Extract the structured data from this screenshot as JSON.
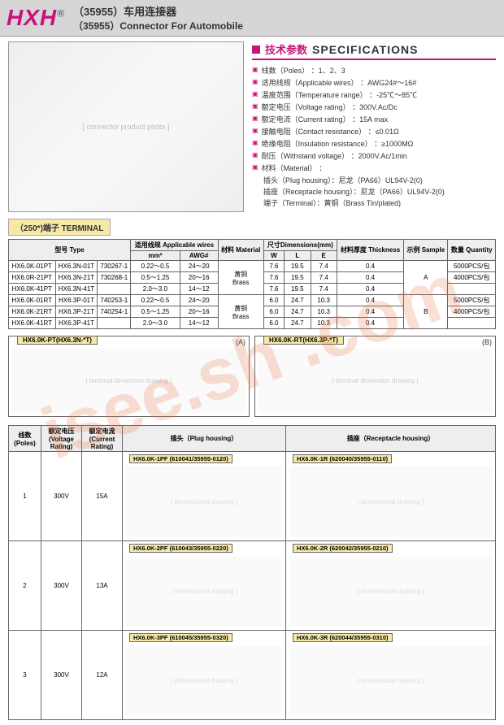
{
  "header": {
    "logo": "HXH",
    "logo_sup": "®",
    "title_cn": "（35955）车用连接器",
    "title_en": "（35955）Connector For Automobile"
  },
  "watermark": "isee.sh    .com",
  "photo_placeholder": "[ connector product photo ]",
  "specs_title": {
    "cn": "技术参数",
    "en": "SPECIFICATIONS"
  },
  "specs": [
    {
      "cn": "线数（Poles）",
      "val": "：1、2、3"
    },
    {
      "cn": "适用线规（Applicable wires）",
      "val": "：AWG24#～16#"
    },
    {
      "cn": "温度范围（Temperature range）",
      "val": "：-25℃～85℃"
    },
    {
      "cn": "额定电压（Voltage rating）",
      "val": "：300V.Ac/Dc"
    },
    {
      "cn": "额定电流（Current rating）",
      "val": "：15A max"
    },
    {
      "cn": "接触电阻（Contact resistance）",
      "val": "：≤0.01Ω"
    },
    {
      "cn": "绝缘电阻（Insulation resistance）",
      "val": "：≥1000MΩ"
    },
    {
      "cn": "耐压（Withstand voltage）",
      "val": "：2000V.Ac/1min"
    },
    {
      "cn": "材料（Material）",
      "val": "："
    }
  ],
  "materials": [
    "插头（Plug housing）：尼龙（PA66）UL94V-2(0)",
    "插座（Receptacle housing）：尼龙（PA66）UL94V-2(0)",
    "端子（Terminal）：黄铜（Brass Tin/plated)"
  ],
  "terminal_badge": "（250*)端子 TERMINAL",
  "term_table": {
    "headers": {
      "type": "型号\nType",
      "aw": "适用线规\nApplicable wires",
      "aw_mm": "mm²",
      "aw_awg": "AWG#",
      "material": "材料\nMaterial",
      "dim": "尺寸Dimensions(mm)",
      "w": "W",
      "l": "L",
      "e": "E",
      "thick": "材料厚度\nThickness",
      "sample": "示例\nSample",
      "qty": "数量\nQuantity"
    },
    "rows": [
      {
        "t1": "HX6.0K-01PT",
        "t2": "HX6.3N-01T",
        "t3": "730267-1",
        "mm": "0.22～0.5",
        "awg": "24～20",
        "mat": "黄铜\nBrass",
        "w": "7.6",
        "l": "19.5",
        "e": "7.4",
        "th": "0.4",
        "s": "A",
        "q": "5000PCS/包"
      },
      {
        "t1": "HX6.0R-21PT",
        "t2": "HX6.3N-21T",
        "t3": "730268-1",
        "mm": "0.5～1.25",
        "awg": "20～16",
        "mat": "",
        "w": "7.6",
        "l": "19.5",
        "e": "7.4",
        "th": "0.4",
        "s": "",
        "q": "4000PCS/包"
      },
      {
        "t1": "HX6.0K-41PT",
        "t2": "HX6.3N-41T",
        "t3": "",
        "mm": "2.0～3.0",
        "awg": "14～12",
        "mat": "",
        "w": "7.6",
        "l": "19.5",
        "e": "7.4",
        "th": "0.4",
        "s": "",
        "q": ""
      },
      {
        "t1": "HX6.0K-01RT",
        "t2": "HX6.3P-01T",
        "t3": "740253-1",
        "mm": "0.22～0.5",
        "awg": "24～20",
        "mat": "黄铜\nBrass",
        "w": "6.0",
        "l": "24.7",
        "e": "10.3",
        "th": "0.4",
        "s": "B",
        "q": "5000PCS/包"
      },
      {
        "t1": "HX6.0K-21RT",
        "t2": "HX6.3P-21T",
        "t3": "740254-1",
        "mm": "0.5～1.25",
        "awg": "20～16",
        "mat": "",
        "w": "6.0",
        "l": "24.7",
        "e": "10.3",
        "th": "0.4",
        "s": "",
        "q": "4000PCS/包"
      },
      {
        "t1": "HX6.0K-41RT",
        "t2": "HX6.3P-41T",
        "t3": "",
        "mm": "2.0～3.0",
        "awg": "14～12",
        "mat": "",
        "w": "6.0",
        "l": "24.7",
        "e": "10.3",
        "th": "0.4",
        "s": "",
        "q": ""
      }
    ]
  },
  "dim_drawings": [
    {
      "label": "HX6.0K-PT(HX6.3N-*T)",
      "corner": "(A)",
      "img": "[ terminal dimension drawing ]"
    },
    {
      "label": "HX6.0K-RT(HX6.3P-*T)",
      "corner": "(B)",
      "img": "[ terminal dimension drawing ]"
    }
  ],
  "housing_table": {
    "headers": {
      "poles": "线数\n(Poles)",
      "vr": "额定电压\n(Voltage\nRating)",
      "cr": "额定电流\n(Current\nRating)",
      "plug": "插头（Plug housing）",
      "recept": "插座（Receptacle housing）"
    },
    "rows": [
      {
        "poles": "1",
        "vr": "300V",
        "cr": "15A",
        "plug_label": "HX6.0K-1PF (610041/35955-0120)",
        "recept_label": "HX6.0K-1R (620040/35955-0110)"
      },
      {
        "poles": "2",
        "vr": "300V",
        "cr": "13A",
        "plug_label": "HX6.0K-2PF (610043/35955-0220)",
        "recept_label": "HX6.0K-2R (620042/35955-0210)"
      },
      {
        "poles": "3",
        "vr": "300V",
        "cr": "12A",
        "plug_label": "HX6.0K-3PF (610045/35955-0320)",
        "recept_label": "HX6.0K-3R (620044/35955-0310)"
      }
    ]
  },
  "drawing_placeholder": "[ dimensional drawing ]",
  "colors": {
    "accent": "#c8147a",
    "badge_bg": "#f6e9a8",
    "header_bg": "#d6d6d6",
    "watermark": "rgba(230,110,60,0.22)"
  }
}
